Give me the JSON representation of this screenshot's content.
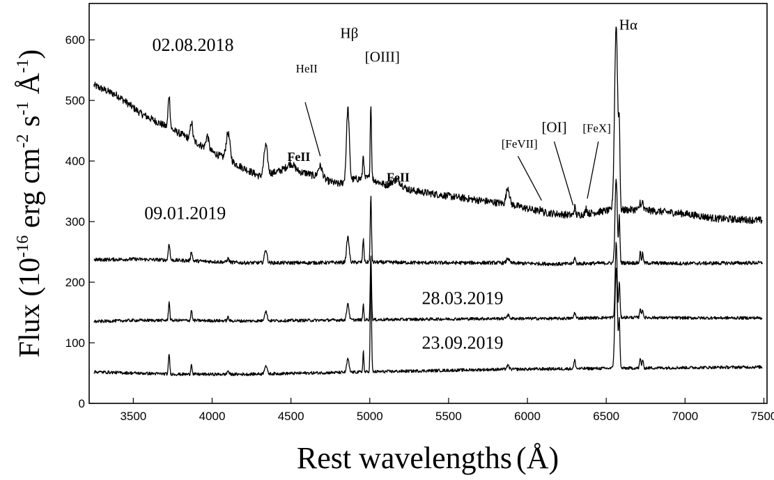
{
  "chart_data": {
    "type": "line",
    "xlabel": "Rest wavelengths",
    "xlabel_unit": "Å",
    "ylabel_main": "Flux (10",
    "ylabel_exp1": "-16",
    "ylabel_mid1": " erg cm",
    "ylabel_exp2": "-2",
    "ylabel_mid2": " s",
    "ylabel_exp3": "-1",
    "ylabel_unit": " Å",
    "ylabel_exp4": "-1",
    "ylabel_end": ")",
    "xlim": [
      3220,
      7520
    ],
    "ylim": [
      0,
      660
    ],
    "xticks": [
      3500,
      4000,
      4500,
      5000,
      5500,
      6000,
      6500,
      7000,
      7500
    ],
    "yticks": [
      0,
      100,
      200,
      300,
      400,
      500,
      600
    ],
    "series": [
      {
        "name": "02.08.2018",
        "continuum": [
          [
            3250,
            525
          ],
          [
            3400,
            508
          ],
          [
            3550,
            478
          ],
          [
            3700,
            458
          ],
          [
            3850,
            438
          ],
          [
            4000,
            415
          ],
          [
            4150,
            395
          ],
          [
            4300,
            375
          ],
          [
            4450,
            385
          ],
          [
            4600,
            380
          ],
          [
            4700,
            370
          ],
          [
            4800,
            362
          ],
          [
            4900,
            370
          ],
          [
            5000,
            372
          ],
          [
            5100,
            360
          ],
          [
            5300,
            350
          ],
          [
            5500,
            342
          ],
          [
            5700,
            335
          ],
          [
            5900,
            328
          ],
          [
            6100,
            315
          ],
          [
            6300,
            310
          ],
          [
            6500,
            318
          ],
          [
            6700,
            320
          ],
          [
            7000,
            313
          ],
          [
            7200,
            305
          ],
          [
            7500,
            302
          ]
        ],
        "lines": [
          [
            3727,
            55,
            6
          ],
          [
            3869,
            30,
            7
          ],
          [
            3970,
            22,
            9
          ],
          [
            4101,
            45,
            12
          ],
          [
            4340,
            48,
            11
          ],
          [
            4500,
            12,
            25
          ],
          [
            4686,
            20,
            14
          ],
          [
            4861,
            120,
            9
          ],
          [
            4959,
            40,
            4
          ],
          [
            5007,
            125,
            4
          ],
          [
            5170,
            12,
            30
          ],
          [
            5876,
            28,
            10
          ],
          [
            6087,
            6,
            6
          ],
          [
            6300,
            14,
            5
          ],
          [
            6374,
            10,
            5
          ],
          [
            6563,
            305,
            10
          ],
          [
            6583,
            120,
            4
          ],
          [
            6716,
            14,
            4
          ],
          [
            6731,
            14,
            4
          ]
        ],
        "noise": 6
      },
      {
        "name": "09.01.2019",
        "continuum": [
          [
            3250,
            237
          ],
          [
            3500,
            238
          ],
          [
            3800,
            236
          ],
          [
            4200,
            232
          ],
          [
            4600,
            232
          ],
          [
            5000,
            233
          ],
          [
            5400,
            232
          ],
          [
            5800,
            232
          ],
          [
            6200,
            230
          ],
          [
            6600,
            232
          ],
          [
            7000,
            231
          ],
          [
            7500,
            232
          ]
        ],
        "lines": [
          [
            3727,
            28,
            5
          ],
          [
            3869,
            16,
            5
          ],
          [
            4101,
            6,
            6
          ],
          [
            4340,
            22,
            8
          ],
          [
            4861,
            42,
            8
          ],
          [
            4959,
            38,
            4
          ],
          [
            5007,
            108,
            4
          ],
          [
            5876,
            8,
            8
          ],
          [
            6300,
            10,
            5
          ],
          [
            6563,
            140,
            7
          ],
          [
            6583,
            75,
            4
          ],
          [
            6716,
            18,
            4
          ],
          [
            6731,
            16,
            4
          ]
        ],
        "noise": 3
      },
      {
        "name": "28.03.2019",
        "continuum": [
          [
            3250,
            135
          ],
          [
            3500,
            137
          ],
          [
            3800,
            137
          ],
          [
            4200,
            136
          ],
          [
            4600,
            137
          ],
          [
            5000,
            138
          ],
          [
            5400,
            139
          ],
          [
            5800,
            140
          ],
          [
            6200,
            140
          ],
          [
            6600,
            142
          ],
          [
            7000,
            141
          ],
          [
            7500,
            141
          ]
        ],
        "lines": [
          [
            3727,
            32,
            4
          ],
          [
            3869,
            18,
            4
          ],
          [
            4101,
            6,
            5
          ],
          [
            4340,
            16,
            8
          ],
          [
            4861,
            28,
            7
          ],
          [
            4959,
            28,
            3
          ],
          [
            5007,
            108,
            4
          ],
          [
            5876,
            6,
            8
          ],
          [
            6300,
            10,
            5
          ],
          [
            6563,
            125,
            6
          ],
          [
            6583,
            60,
            4
          ],
          [
            6716,
            16,
            4
          ],
          [
            6731,
            14,
            4
          ]
        ],
        "noise": 2.5
      },
      {
        "name": "23.09.2019",
        "continuum": [
          [
            3250,
            52
          ],
          [
            3500,
            50
          ],
          [
            3800,
            48
          ],
          [
            4200,
            48
          ],
          [
            4600,
            50
          ],
          [
            5000,
            52
          ],
          [
            5400,
            54
          ],
          [
            5800,
            56
          ],
          [
            6200,
            57
          ],
          [
            6600,
            58
          ],
          [
            7000,
            59
          ],
          [
            7500,
            60
          ]
        ],
        "lines": [
          [
            3727,
            34,
            4
          ],
          [
            3869,
            18,
            4
          ],
          [
            4101,
            6,
            5
          ],
          [
            4340,
            14,
            8
          ],
          [
            4861,
            22,
            7
          ],
          [
            4959,
            36,
            3
          ],
          [
            5007,
            165,
            4
          ],
          [
            5876,
            6,
            8
          ],
          [
            6300,
            14,
            5
          ],
          [
            6563,
            165,
            8
          ],
          [
            6583,
            75,
            4
          ],
          [
            6716,
            16,
            4
          ],
          [
            6731,
            14,
            4
          ]
        ],
        "noise": 2.5
      }
    ],
    "date_labels": [
      {
        "text": "02.08.2018",
        "x": 3620,
        "y": 582
      },
      {
        "text": "09.01.2019",
        "x": 3570,
        "y": 304
      },
      {
        "text": "28.03.2019",
        "x": 5330,
        "y": 164
      },
      {
        "text": "23.09.2019",
        "x": 5330,
        "y": 90
      }
    ],
    "line_annotations": [
      {
        "text": "HeII",
        "tx": 4600,
        "ty": 546,
        "lx1": 4590,
        "ly1": 497,
        "lx2": 4686,
        "ly2": 408,
        "cls": ""
      },
      {
        "text": "Hβ",
        "tx": 4870,
        "ty": 603,
        "cls": "big"
      },
      {
        "text": "[OIII]",
        "tx": 5080,
        "ty": 564,
        "cls": "big"
      },
      {
        "text": "FeII",
        "tx": 4550,
        "ty": 400,
        "cls": "bold"
      },
      {
        "text": "FeII",
        "tx": 5180,
        "ty": 366,
        "cls": "bold"
      },
      {
        "text": "[FeVII]",
        "tx": 5950,
        "ty": 422,
        "lx1": 5940,
        "ly1": 408,
        "lx2": 6090,
        "ly2": 335,
        "cls": ""
      },
      {
        "text": "[OI]",
        "tx": 6170,
        "ty": 448,
        "lx1": 6170,
        "ly1": 432,
        "lx2": 6290,
        "ly2": 327,
        "cls": "big"
      },
      {
        "text": "[FeX]",
        "tx": 6440,
        "ty": 448,
        "lx1": 6450,
        "ly1": 432,
        "lx2": 6380,
        "ly2": 338,
        "cls": ""
      },
      {
        "text": "Hα",
        "tx": 6640,
        "ty": 617,
        "cls": "big"
      }
    ]
  }
}
